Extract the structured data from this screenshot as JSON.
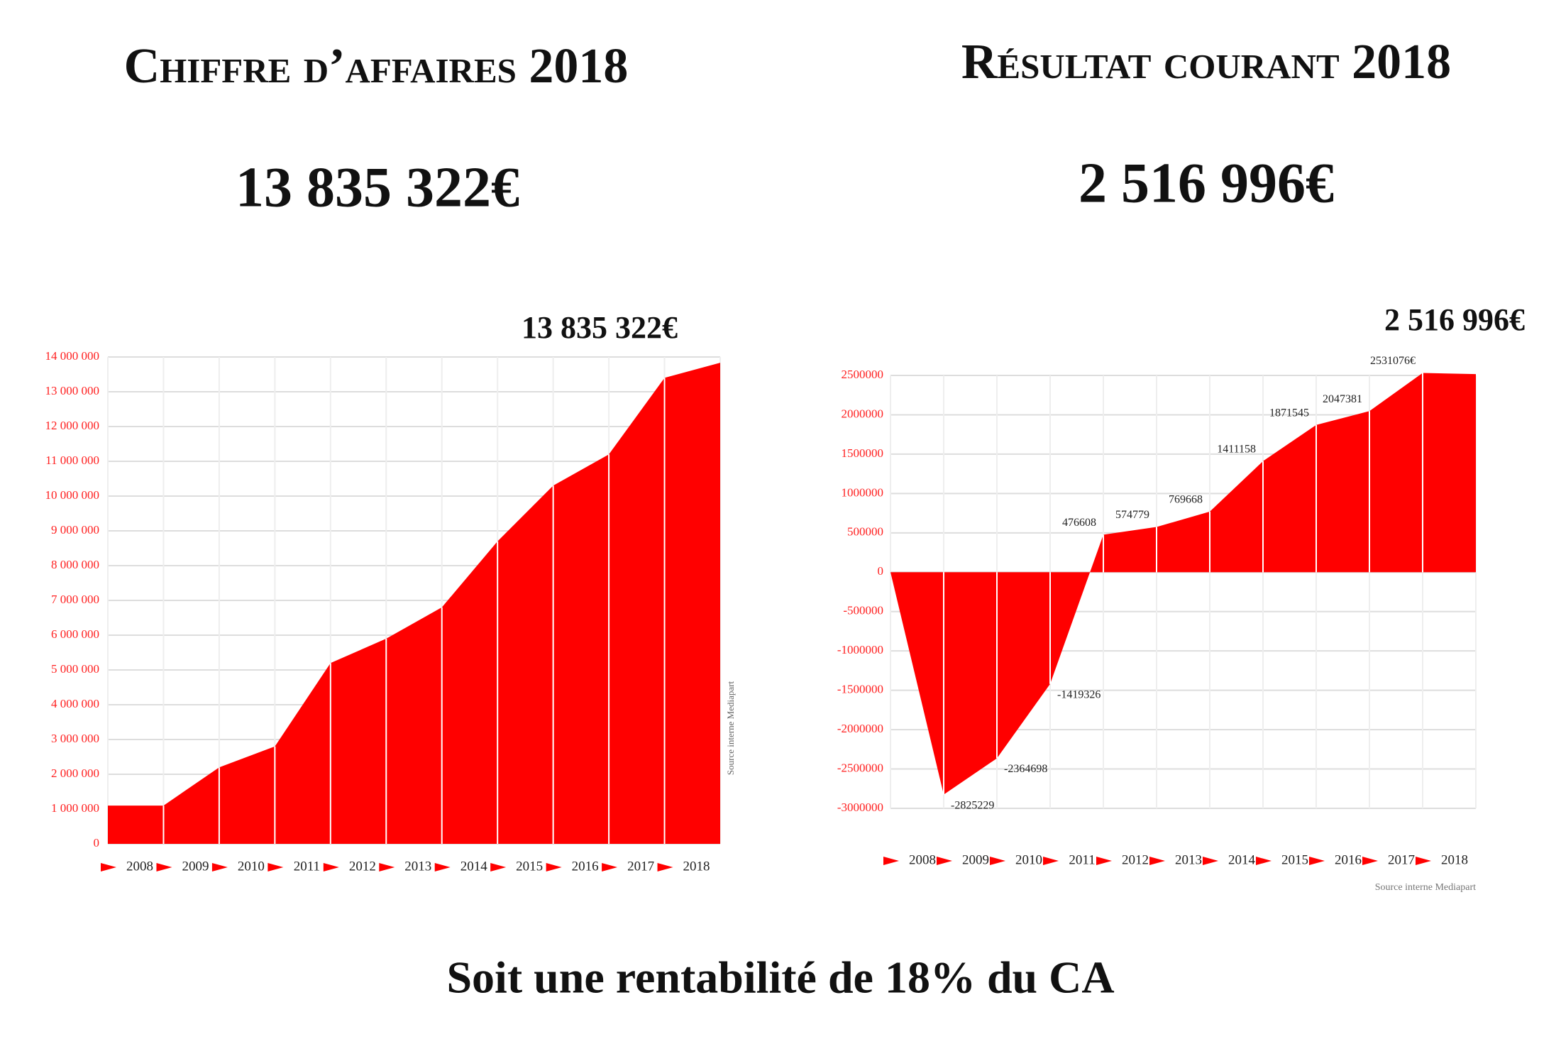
{
  "panels": [
    {
      "title": "Chiffre d’affaires 2018",
      "total": "13 835 322€"
    },
    {
      "title": "Résultat courant 2018",
      "total": "2 516 996€"
    }
  ],
  "chart_data": [
    {
      "type": "area",
      "annotation": "13 835 322€",
      "source": "Source interne Mediapart",
      "categories": [
        "2008",
        "2009",
        "2010",
        "2011",
        "2012",
        "2013",
        "2014",
        "2015",
        "2016",
        "2017",
        "2018"
      ],
      "values": [
        1100000,
        2200000,
        2800000,
        5200000,
        5900000,
        6800000,
        8700000,
        10300000,
        11200000,
        13400000,
        13835322
      ],
      "color": "#ff0000",
      "grid": true,
      "ylim": [
        0,
        14000000
      ],
      "yticks": [
        0,
        {
          "value": 1000000,
          "label": "1 000 000"
        },
        {
          "value": 2000000,
          "label": "2 000 000"
        },
        {
          "value": 3000000,
          "label": "3 000 000"
        },
        {
          "value": 4000000,
          "label": "4 000 000"
        },
        {
          "value": 5000000,
          "label": "5 000 000"
        },
        {
          "value": 6000000,
          "label": "6 000 000"
        },
        {
          "value": 7000000,
          "label": "7 000 000"
        },
        {
          "value": 8000000,
          "label": "8 000 000"
        },
        {
          "value": 9000000,
          "label": "9 000 000"
        },
        {
          "value": 10000000,
          "label": "10 000 000"
        },
        {
          "value": 11000000,
          "label": "11 000 000"
        },
        {
          "value": 12000000,
          "label": "12 000 000"
        },
        {
          "value": 13000000,
          "label": "13 000 000"
        },
        {
          "value": 14000000,
          "label": "14 000 000"
        }
      ]
    },
    {
      "type": "area",
      "annotation": "2 516 996€",
      "source": "Source interne Mediapart",
      "categories": [
        "2008",
        "2009",
        "2010",
        "2011",
        "2012",
        "2013",
        "2014",
        "2015",
        "2016",
        "2017",
        "2018"
      ],
      "values": [
        -2825229,
        -2364698,
        -1419326,
        476608,
        574779,
        769668,
        1411158,
        1871545,
        2047381,
        2531076,
        2516996
      ],
      "value_labels": [
        "-2825229",
        "-2364698",
        "-1419326",
        "476608",
        "574779",
        "769668",
        "1411158",
        "1871545",
        "2047381",
        "2531076€",
        null
      ],
      "color": "#ff0000",
      "grid": true,
      "ylim": [
        -3000000,
        2500000
      ],
      "yticks": [
        -3000000,
        -2500000,
        -2000000,
        -1500000,
        -1000000,
        -500000,
        0,
        500000,
        1000000,
        1500000,
        2000000,
        2500000
      ]
    }
  ],
  "conclusion": "Soit une rentabilité de 18% du CA"
}
